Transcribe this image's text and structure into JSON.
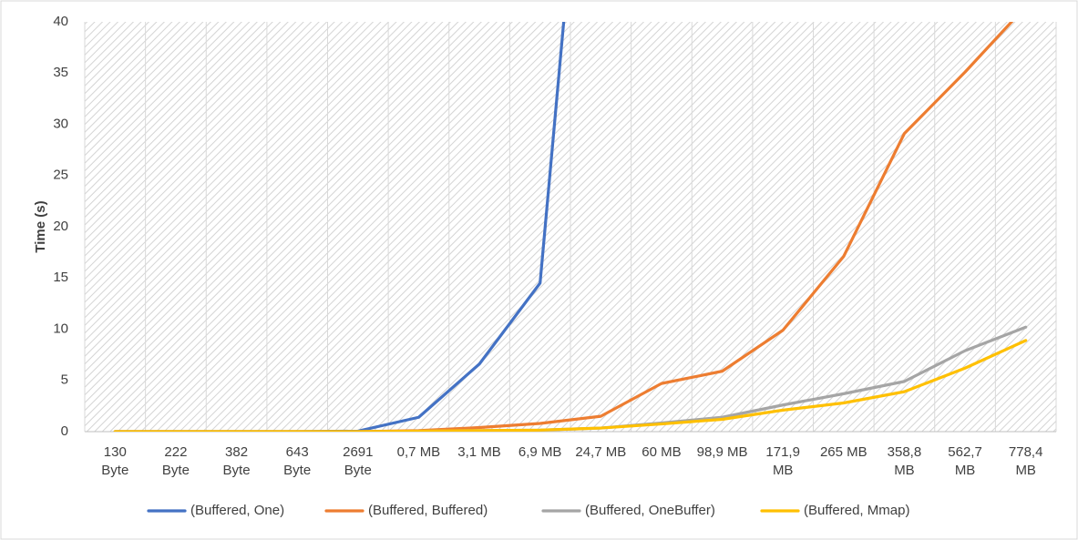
{
  "chart_data": {
    "type": "line",
    "title": "",
    "xlabel": "",
    "ylabel": "Time (s)",
    "ylim": [
      0,
      40
    ],
    "yticks": [
      0,
      5,
      10,
      15,
      20,
      25,
      30,
      35,
      40
    ],
    "grid": "hatched plot area",
    "legend_position": "bottom",
    "categories": [
      [
        "130",
        "Byte"
      ],
      [
        "222",
        "Byte"
      ],
      [
        "382",
        "Byte"
      ],
      [
        "643",
        "Byte"
      ],
      [
        "2691",
        "Byte"
      ],
      [
        "0,7 MB"
      ],
      [
        "3,1 MB"
      ],
      [
        "6,9 MB"
      ],
      [
        "24,7 MB"
      ],
      [
        "60 MB"
      ],
      [
        "98,9 MB"
      ],
      [
        "171,9",
        "MB"
      ],
      [
        "265 MB"
      ],
      [
        "358,8",
        "MB"
      ],
      [
        "562,7",
        "MB"
      ],
      [
        "778,4",
        "MB"
      ]
    ],
    "series": [
      {
        "name": "(Buffered, One)",
        "color": "#4472c4",
        "values": [
          0,
          0,
          0,
          0,
          0.05,
          1.4,
          6.6,
          14.5,
          80,
          null,
          null,
          null,
          null,
          null,
          null,
          null
        ]
      },
      {
        "name": "(Buffered, Buffered)",
        "color": "#ed7d31",
        "values": [
          0,
          0,
          0,
          0,
          0,
          0.1,
          0.4,
          0.8,
          1.5,
          4.7,
          5.9,
          9.9,
          17.1,
          29.1,
          35.1,
          41.5
        ]
      },
      {
        "name": "(Buffered, OneBuffer)",
        "color": "#a5a5a5",
        "values": [
          0,
          0,
          0,
          0,
          0,
          0.05,
          0.1,
          0.15,
          0.35,
          0.85,
          1.4,
          2.6,
          3.7,
          4.9,
          7.9,
          10.2
        ]
      },
      {
        "name": "(Buffered, Mmap)",
        "color": "#ffc000",
        "values": [
          0,
          0,
          0,
          0,
          0,
          0.05,
          0.1,
          0.15,
          0.35,
          0.75,
          1.2,
          2.1,
          2.8,
          3.9,
          6.2,
          8.9
        ]
      }
    ]
  }
}
